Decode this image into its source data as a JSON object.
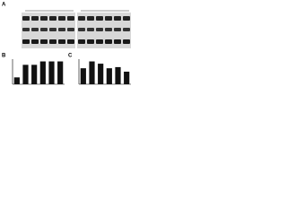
{
  "panel_labels": [
    "A",
    "B",
    "C"
  ],
  "chart_data": [
    {
      "type": "bar",
      "color": "#111111",
      "values": [
        0.3,
        0.85,
        0.85,
        1.0,
        1.0,
        1.0
      ],
      "ylim": [
        0,
        1.1
      ]
    },
    {
      "type": "bar",
      "color": "#111111",
      "values": [
        0.7,
        1.0,
        0.9,
        0.7,
        0.75,
        0.55
      ],
      "ylim": [
        0,
        1.1
      ]
    }
  ]
}
